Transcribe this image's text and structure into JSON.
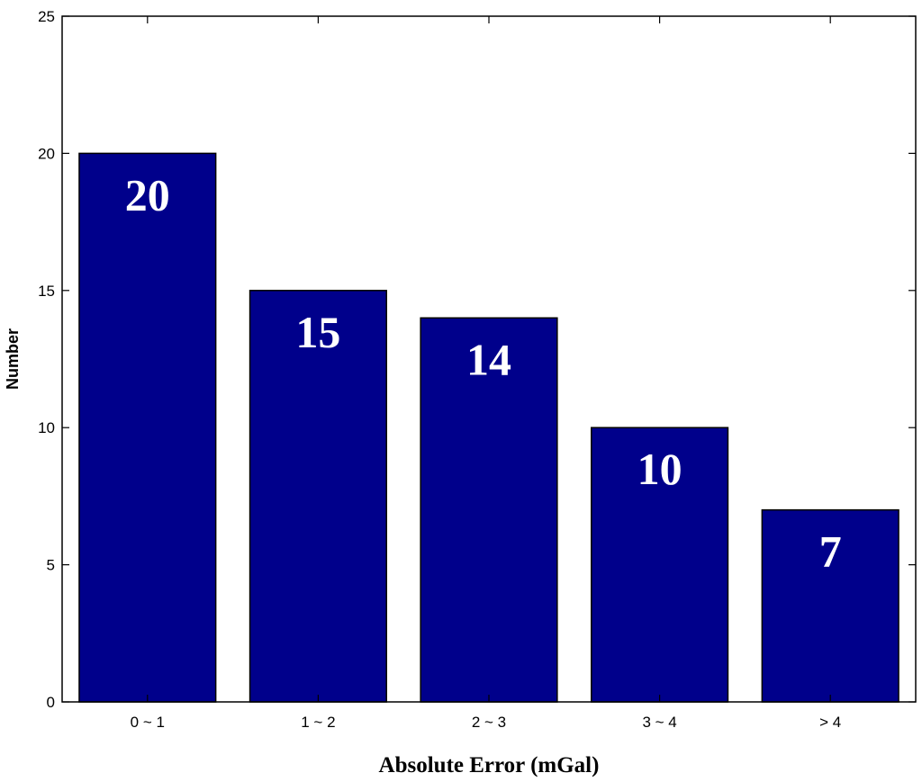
{
  "chart_data": {
    "type": "bar",
    "categories": [
      "0 ~ 1",
      "1 ~ 2",
      "2 ~ 3",
      "3 ~ 4",
      "> 4"
    ],
    "values": [
      20,
      15,
      14,
      10,
      7
    ],
    "data_labels": [
      "20",
      "15",
      "14",
      "10",
      "7"
    ],
    "title": "",
    "xlabel": "Absolute Error (mGal)",
    "ylabel": "Number",
    "ylim": [
      0,
      25
    ],
    "yticks": [
      "0",
      "5",
      "10",
      "15",
      "20",
      "25"
    ],
    "grid": false,
    "bar_color": "#00008b",
    "bar_edge_color": "#000000"
  }
}
